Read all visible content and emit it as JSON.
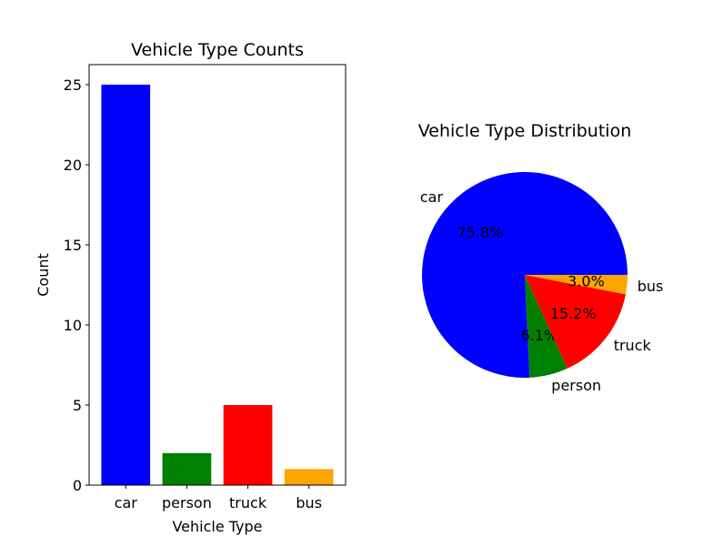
{
  "chart_data": [
    {
      "type": "bar",
      "title": "Vehicle Type Counts",
      "xlabel": "Vehicle Type",
      "ylabel": "Count",
      "categories": [
        "car",
        "person",
        "truck",
        "bus"
      ],
      "values": [
        25,
        2,
        5,
        1
      ],
      "colors": [
        "#0000ff",
        "#008000",
        "#ff0000",
        "#ffa500"
      ],
      "ylim": [
        0,
        26.25
      ],
      "yticks": [
        0,
        5,
        10,
        15,
        20,
        25
      ],
      "grid": false
    },
    {
      "type": "pie",
      "title": "Vehicle Type Distribution",
      "labels": [
        "car",
        "person",
        "truck",
        "bus"
      ],
      "values": [
        25,
        2,
        5,
        1
      ],
      "percent_labels": [
        "75.8%",
        "6.1%",
        "15.2%",
        "3.0%"
      ],
      "colors": [
        "#0000ff",
        "#008000",
        "#ff0000",
        "#ffa500"
      ]
    }
  ]
}
